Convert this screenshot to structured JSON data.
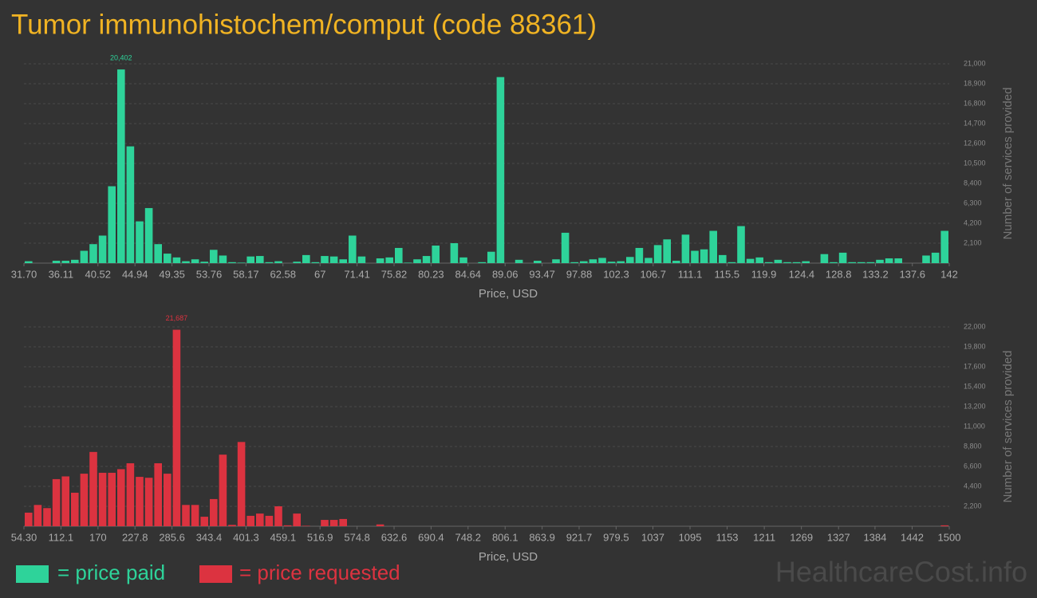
{
  "title": "Tumor immunohistochem/comput (code 88361)",
  "watermark": "HealthcareCost.info",
  "chart_data": [
    {
      "type": "histogram",
      "name": "= price paid",
      "color": "#2ed39a",
      "x_label": "Price, USD",
      "y_label": "Number of services provided",
      "grid": true,
      "bins": [
        31.7,
        32.803,
        33.906,
        35.009,
        36.112,
        37.215,
        38.318,
        39.421,
        40.524,
        41.627,
        42.73,
        43.833,
        44.936,
        46.039,
        47.142,
        48.245,
        49.348,
        50.451,
        51.554,
        52.657,
        53.76,
        54.863,
        55.966,
        57.069,
        58.172,
        59.275,
        60.378,
        61.481,
        62.584,
        63.687,
        64.79,
        65.893,
        66.996,
        68.099,
        69.202,
        70.305,
        71.408,
        72.511,
        73.614,
        74.717,
        75.82,
        76.923,
        78.026,
        79.129,
        80.232,
        81.335,
        82.438,
        83.541,
        84.644,
        85.747,
        86.85,
        87.953,
        89.056,
        90.159,
        91.262,
        92.365,
        93.468,
        94.571,
        95.674,
        96.777,
        97.88,
        98.983,
        100.086,
        101.189,
        102.292,
        103.395,
        104.498,
        105.601,
        106.704,
        107.807,
        108.91,
        110.013,
        111.116,
        112.219,
        113.322,
        114.425,
        115.528,
        116.631,
        117.734,
        118.837,
        119.94,
        121.043,
        122.146,
        123.249,
        124.352,
        125.455,
        126.558,
        127.661,
        128.764,
        129.867,
        130.97,
        132.073,
        133.176,
        134.279,
        135.382,
        136.485,
        137.588,
        138.691,
        139.794,
        140.897,
        142.0
      ],
      "values": [
        200,
        0,
        0,
        250,
        250,
        350,
        1300,
        2000,
        2900,
        8100,
        20402,
        12300,
        4400,
        5800,
        2000,
        1000,
        600,
        200,
        400,
        150,
        1400,
        800,
        100,
        50,
        700,
        750,
        100,
        200,
        0,
        150,
        850,
        100,
        750,
        700,
        400,
        2900,
        700,
        0,
        500,
        600,
        1600,
        50,
        400,
        750,
        1850,
        0,
        2100,
        600,
        0,
        100,
        1200,
        19600,
        0,
        350,
        0,
        250,
        0,
        400,
        3200,
        100,
        200,
        400,
        550,
        150,
        200,
        650,
        1600,
        550,
        1900,
        2500,
        250,
        3000,
        1300,
        1450,
        3400,
        850,
        100,
        3900,
        450,
        600,
        100,
        350,
        100,
        100,
        200,
        0,
        950,
        100,
        1100,
        100,
        100,
        100,
        350,
        500,
        500,
        0,
        0,
        800,
        1100,
        3400
      ],
      "value_labels": [
        null,
        null,
        null,
        null,
        null,
        null,
        null,
        null,
        null,
        null,
        "20,402",
        null,
        null,
        null,
        null,
        null,
        null,
        null,
        null,
        null,
        null,
        null,
        null,
        null,
        null,
        null,
        null,
        null,
        null,
        null,
        null,
        null,
        null,
        null,
        null,
        null,
        null,
        null,
        null,
        null,
        null,
        null,
        null,
        null,
        null,
        null,
        null,
        null,
        null,
        null,
        null,
        null,
        null,
        null,
        null,
        null,
        null,
        null,
        null,
        null,
        null,
        null,
        null,
        null,
        null,
        null,
        null,
        null,
        null,
        null,
        null,
        null,
        null,
        null,
        null,
        null,
        null,
        null,
        null,
        null,
        null,
        null,
        null,
        null,
        null,
        null,
        null,
        null,
        null,
        null,
        null,
        null,
        null,
        null,
        null,
        null,
        null,
        null,
        null,
        null
      ],
      "xlim": [
        31.7,
        142
      ],
      "xticks": [
        {
          "value": 31.7,
          "label": "31.70"
        },
        36.11,
        40.52,
        44.94,
        49.35,
        53.76,
        58.17,
        62.58,
        67,
        71.41,
        75.82,
        80.23,
        84.64,
        89.06,
        93.47,
        97.88,
        102.3,
        106.7,
        111.1,
        115.5,
        119.9,
        124.4,
        128.8,
        133.2,
        137.6,
        142
      ],
      "ylim": [
        0,
        21000
      ],
      "yticks": [
        {
          "value": 2100,
          "label": "2,100"
        },
        {
          "value": 4200,
          "label": "4,200"
        },
        {
          "value": 6300,
          "label": "6,300"
        },
        {
          "value": 8400,
          "label": "8,400"
        },
        {
          "value": 10500,
          "label": "10,500"
        },
        {
          "value": 12600,
          "label": "12,600"
        },
        {
          "value": 14700,
          "label": "14,700"
        },
        {
          "value": 16800,
          "label": "16,800"
        },
        {
          "value": 18900,
          "label": "18,900"
        },
        {
          "value": 21000,
          "label": "21,000"
        }
      ]
    },
    {
      "type": "histogram",
      "name": "= price requested",
      "color": "#dc3340",
      "x_label": "Price, USD",
      "y_label": "Number of services provided",
      "grid": true,
      "bins": [
        54.3,
        68.76,
        83.21,
        97.67,
        112.13,
        126.59,
        141.04,
        155.5,
        169.96,
        184.41,
        198.87,
        213.33,
        227.78,
        242.24,
        256.7,
        271.16,
        285.61,
        300.07,
        314.53,
        328.98,
        343.44,
        357.9,
        372.35,
        386.81,
        401.27,
        415.73,
        430.18,
        444.64,
        459.1,
        473.55,
        488.01,
        502.47,
        516.92,
        531.38,
        545.84,
        560.3,
        574.75,
        589.21,
        603.67,
        618.12,
        632.58,
        647.04,
        661.49,
        675.95,
        690.41,
        704.87,
        719.32,
        733.78,
        748.24,
        762.69,
        777.15,
        791.61,
        806.06,
        820.52,
        834.98,
        849.44,
        863.89,
        878.35,
        892.81,
        907.26,
        921.72,
        936.18,
        950.63,
        965.09,
        979.55,
        994.01,
        1008.46,
        1022.92,
        1037.38,
        1051.83,
        1066.29,
        1080.75,
        1095.2,
        1109.66,
        1124.12,
        1138.58,
        1153.03,
        1167.49,
        1181.95,
        1196.4,
        1210.86,
        1225.32,
        1239.77,
        1254.23,
        1268.69,
        1283.15,
        1297.6,
        1312.06,
        1326.52,
        1340.97,
        1355.43,
        1369.89,
        1384.34,
        1398.8,
        1413.26,
        1427.72,
        1442.17,
        1456.63,
        1471.09,
        1485.54,
        1500
      ],
      "values": [
        1500,
        2350,
        2000,
        5200,
        5500,
        3700,
        5800,
        8200,
        5900,
        5900,
        6300,
        6950,
        5450,
        5350,
        6950,
        5800,
        21687,
        2350,
        2350,
        1050,
        3000,
        7900,
        150,
        9300,
        1150,
        1400,
        1150,
        2200,
        100,
        1400,
        50,
        0,
        700,
        700,
        800,
        0,
        0,
        0,
        200,
        0,
        0,
        0,
        0,
        0,
        0,
        0,
        0,
        0,
        0,
        0,
        0,
        0,
        0,
        0,
        0,
        0,
        0,
        0,
        0,
        0,
        0,
        0,
        0,
        0,
        0,
        0,
        0,
        0,
        0,
        0,
        0,
        0,
        0,
        0,
        0,
        0,
        0,
        0,
        0,
        0,
        0,
        0,
        0,
        0,
        0,
        0,
        0,
        0,
        0,
        0,
        0,
        0,
        0,
        0,
        0,
        0,
        0,
        0,
        0,
        100
      ],
      "value_labels": [
        null,
        null,
        null,
        null,
        null,
        null,
        null,
        null,
        null,
        null,
        null,
        null,
        null,
        null,
        null,
        null,
        "21,687",
        null,
        null,
        null,
        null,
        null,
        null,
        null,
        null,
        null,
        null,
        null,
        null,
        null,
        null,
        null,
        null,
        null,
        null,
        null,
        null,
        null,
        null,
        null,
        null,
        null,
        null,
        null,
        null,
        null,
        null,
        null,
        null,
        null,
        null,
        null,
        null,
        null,
        null,
        null,
        null,
        null,
        null,
        null,
        null,
        null,
        null,
        null,
        null,
        null,
        null,
        null,
        null,
        null,
        null,
        null,
        null,
        null,
        null,
        null,
        null,
        null,
        null,
        null,
        null,
        null,
        null,
        null,
        null,
        null,
        null,
        null,
        null,
        null,
        null,
        null,
        null,
        null,
        null,
        null,
        null,
        null,
        null,
        null
      ],
      "xlim": [
        54.3,
        1500
      ],
      "xticks": [
        {
          "value": 54.3,
          "label": "54.30"
        },
        112.1,
        170,
        227.8,
        285.6,
        343.4,
        401.3,
        459.1,
        516.9,
        574.8,
        632.6,
        690.4,
        748.2,
        806.1,
        863.9,
        921.7,
        979.5,
        1037,
        1095,
        1153,
        1211,
        1269,
        1327,
        1384,
        1442,
        1500
      ],
      "ylim": [
        0,
        22000
      ],
      "yticks": [
        {
          "value": 2200,
          "label": "2,200"
        },
        {
          "value": 4400,
          "label": "4,400"
        },
        {
          "value": 6600,
          "label": "6,600"
        },
        {
          "value": 8800,
          "label": "8,800"
        },
        {
          "value": 11000,
          "label": "11,000"
        },
        {
          "value": 13200,
          "label": "13,200"
        },
        {
          "value": 15400,
          "label": "15,400"
        },
        {
          "value": 17600,
          "label": "17,600"
        },
        {
          "value": 19800,
          "label": "19,800"
        },
        {
          "value": 22000,
          "label": "22,000"
        }
      ]
    }
  ]
}
